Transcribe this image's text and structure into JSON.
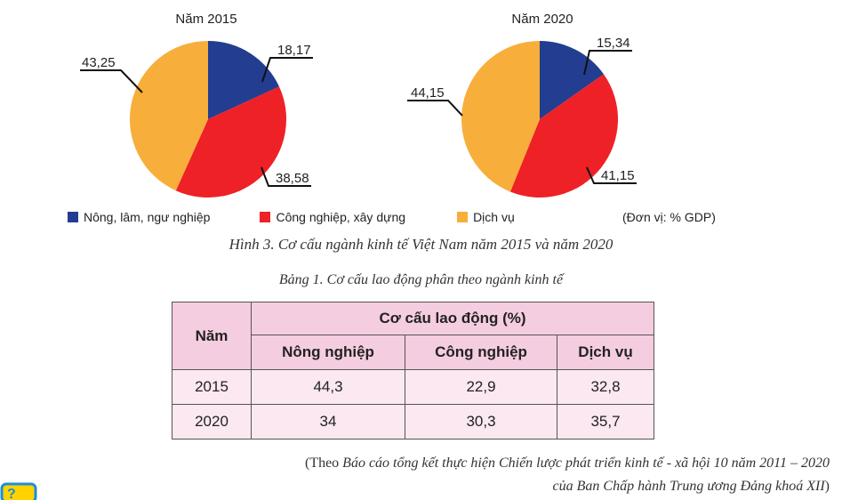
{
  "chart_data": [
    {
      "type": "pie",
      "title": "Năm 2015",
      "series": [
        {
          "name": "Nông, lâm, ngư nghiệp",
          "value": 18.17,
          "label": "18,17",
          "color": "#233d91"
        },
        {
          "name": "Công nghiệp, xây dựng",
          "value": 38.58,
          "label": "38,58",
          "color": "#ee2126"
        },
        {
          "name": "Dịch vụ",
          "value": 43.25,
          "label": "43,25",
          "color": "#f7ae3b"
        }
      ]
    },
    {
      "type": "pie",
      "title": "Năm 2020",
      "series": [
        {
          "name": "Nông, lâm, ngư nghiệp",
          "value": 15.34,
          "label": "15,34",
          "color": "#233d91"
        },
        {
          "name": "Công nghiệp, xây dựng",
          "value": 41.15,
          "label": "41,15",
          "color": "#ee2126"
        },
        {
          "name": "Dịch vụ",
          "value": 44.15,
          "label": "44,15",
          "color": "#f7ae3b"
        }
      ]
    },
    {
      "type": "table",
      "title": "Bảng 1. Cơ cấu lao động phân theo ngành kinh tế",
      "header_top": "Cơ cấu lao động (%)",
      "columns": [
        "Năm",
        "Nông nghiệp",
        "Công nghiệp",
        "Dịch vụ"
      ],
      "rows": [
        [
          "2015",
          "44,3",
          "22,9",
          "32,8"
        ],
        [
          "2020",
          "34",
          "30,3",
          "35,7"
        ]
      ]
    }
  ],
  "legend": {
    "items": [
      {
        "label": "Nông, lâm, ngư nghiệp",
        "color": "#233d91"
      },
      {
        "label": "Công nghiệp, xây dựng",
        "color": "#ee2126"
      },
      {
        "label": "Dịch vụ",
        "color": "#f7ae3b"
      }
    ],
    "unit": "(Đơn vị: % GDP)"
  },
  "figure_caption": "Hình 3. Cơ cấu ngành kinh tế Việt Nam năm 2015 và năm 2020",
  "source": {
    "line1_prefix": "(Theo ",
    "line1_italic": "Báo cáo tổng kết thực hiện Chiến lược phát triển kinh tế - xã hội 10 năm 2011 – 2020",
    "line2_italic": "của Ban Chấp hành Trung ương Đảng khoá XII",
    "line2_suffix": ")"
  }
}
